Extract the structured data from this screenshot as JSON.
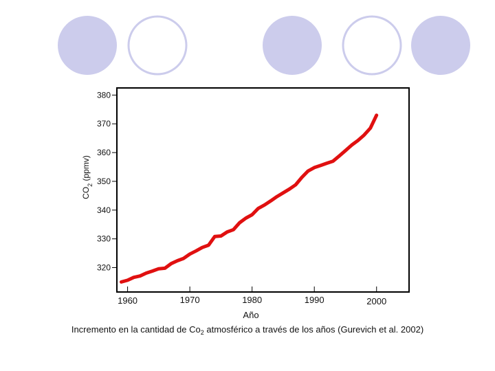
{
  "decoration": {
    "circles": [
      {
        "style": "filled"
      },
      {
        "style": "outline"
      },
      {
        "style": "filled"
      },
      {
        "style": "outline"
      },
      {
        "style": "filled"
      }
    ],
    "fill_color": "#ccccec",
    "ring_color": "#ccccec"
  },
  "chart_data": {
    "type": "line",
    "title": "",
    "xlabel": "Año",
    "ylabel_main": "CO",
    "ylabel_sub": "2",
    "ylabel_suffix": " (ppmv)",
    "xlim": [
      1958.5,
      2005
    ],
    "ylim": [
      312,
      382
    ],
    "x_ticks": [
      {
        "value": 1960,
        "label": "1960"
      },
      {
        "value": 1970,
        "label": "1970"
      },
      {
        "value": 1980,
        "label": "1980"
      },
      {
        "value": 1990,
        "label": "1990"
      },
      {
        "value": 2000,
        "label": "2000"
      }
    ],
    "y_ticks": [
      {
        "value": 320,
        "label": "320"
      },
      {
        "value": 330,
        "label": "330"
      },
      {
        "value": 340,
        "label": "340"
      },
      {
        "value": 350,
        "label": "350"
      },
      {
        "value": 360,
        "label": "360"
      },
      {
        "value": 370,
        "label": "370"
      },
      {
        "value": 380,
        "label": "380"
      }
    ],
    "series": [
      {
        "name": "CO2",
        "color": "#e01010",
        "x": [
          1959,
          1960,
          1961,
          1962,
          1963,
          1964,
          1965,
          1966,
          1967,
          1968,
          1969,
          1970,
          1971,
          1972,
          1973,
          1974,
          1975,
          1976,
          1977,
          1978,
          1979,
          1980,
          1981,
          1982,
          1983,
          1984,
          1985,
          1986,
          1987,
          1988,
          1989,
          1990,
          1991,
          1992,
          1993,
          1994,
          1995,
          1996,
          1997,
          1998,
          1999,
          2000
        ],
        "y": [
          315.0,
          315.6,
          316.6,
          317.1,
          318.1,
          318.8,
          319.6,
          319.8,
          321.4,
          322.4,
          323.2,
          324.7,
          325.8,
          327.0,
          327.8,
          330.8,
          331.0,
          332.4,
          333.2,
          335.6,
          337.2,
          338.4,
          340.6,
          341.8,
          343.2,
          344.7,
          346.0,
          347.3,
          348.8,
          351.4,
          353.6,
          354.8,
          355.5,
          356.3,
          357.0,
          358.8,
          360.7,
          362.6,
          364.2,
          366.1,
          368.5,
          373.0
        ]
      }
    ]
  },
  "caption": {
    "prefix": "Incremento en la cantidad de Co",
    "sub": "2",
    "suffix": " atmosférico a través de los años (Gurevich et al. 2002)"
  }
}
